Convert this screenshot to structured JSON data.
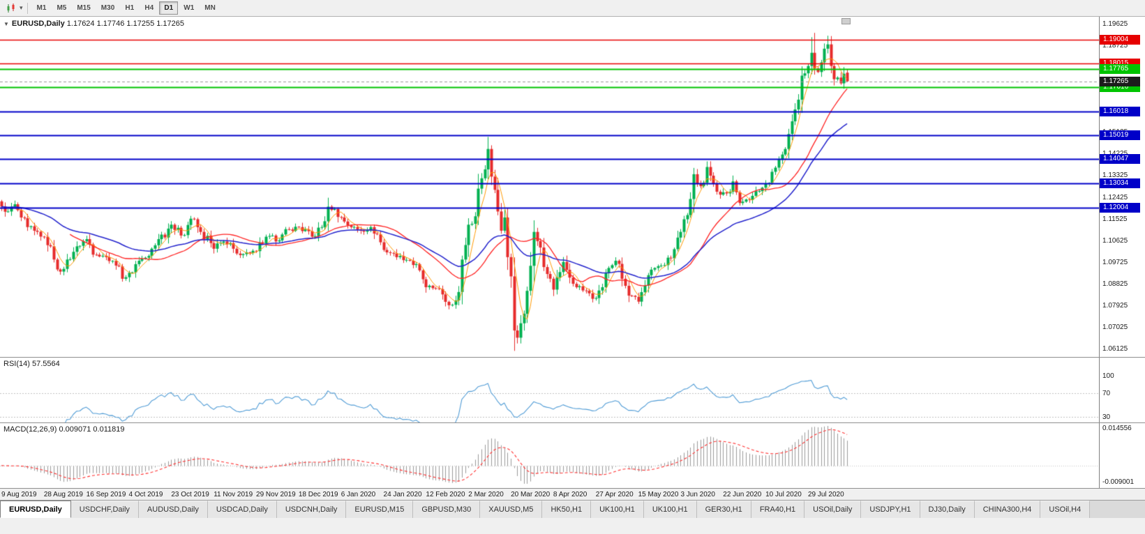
{
  "colors": {
    "up": "#00b050",
    "down": "#e62b2b",
    "ma_fast": "#ff9900",
    "ma_mid": "#ff2222",
    "ma_slow": "#2222cc",
    "rsi": "#4f9bd5",
    "macd_hist": "#9a9a9a",
    "macd_signal": "#ff3030",
    "resistance": "#e60000",
    "support_green": "#00c400",
    "support_blue": "#0000c8",
    "bid_badge": "#1c1c1c"
  },
  "toolbar": {
    "timeframes": [
      {
        "label": "M1",
        "active": false
      },
      {
        "label": "M5",
        "active": false
      },
      {
        "label": "M15",
        "active": false
      },
      {
        "label": "M30",
        "active": false
      },
      {
        "label": "H1",
        "active": false
      },
      {
        "label": "H4",
        "active": false
      },
      {
        "label": "D1",
        "active": true
      },
      {
        "label": "W1",
        "active": false
      },
      {
        "label": "MN",
        "active": false
      }
    ]
  },
  "chart": {
    "title_symbol": "EURUSD,Daily",
    "title_ohlc": "1.17624 1.17746 1.17255 1.17265",
    "scale": {
      "top": 1.1995,
      "bottom": 1.058
    },
    "price_axis_labels": [
      "1.19625",
      "1.18725",
      "1.17825",
      "1.16925",
      "1.16025",
      "1.15125",
      "1.14225",
      "1.13325",
      "1.12425",
      "1.11525",
      "1.10625",
      "1.09725",
      "1.08825",
      "1.07925",
      "1.07025",
      "1.06125"
    ],
    "hlines": [
      {
        "price": 1.19004,
        "label": "1.19004",
        "color": "#e60000",
        "width": 1.4,
        "kind": "resistance"
      },
      {
        "price": 1.18015,
        "label": "1.18015",
        "color": "#e60000",
        "width": 1.4,
        "kind": "resistance"
      },
      {
        "price": 1.17765,
        "label": "1.17765",
        "color": "#00c400",
        "width": 2,
        "kind": "support"
      },
      {
        "price": 1.17016,
        "label": "1.17016",
        "color": "#00c400",
        "width": 2,
        "kind": "support"
      },
      {
        "price": 1.16018,
        "label": "1.16018",
        "color": "#0000c8",
        "width": 1.8,
        "kind": "support"
      },
      {
        "price": 1.15019,
        "label": "1.15019",
        "color": "#0000c8",
        "width": 1.8,
        "kind": "support"
      },
      {
        "price": 1.14047,
        "label": "1.14047",
        "color": "#0000c8",
        "width": 1.8,
        "kind": "support"
      },
      {
        "price": 1.13034,
        "label": "1.13034",
        "color": "#0000c8",
        "width": 1.8,
        "kind": "support"
      },
      {
        "price": 1.12004,
        "label": "1.12004",
        "color": "#0000c8",
        "width": 1.8,
        "kind": "support"
      }
    ],
    "bid": {
      "price": 1.17265,
      "label": "1.17265"
    }
  },
  "chart_data": {
    "type": "candlestick",
    "symbol": "EURUSD",
    "timeframe": "Daily",
    "candles_count": 260,
    "last_candle": {
      "open": 1.17624,
      "high": 1.17746,
      "low": 1.17255,
      "close": 1.17265
    },
    "close_waypoints": [
      [
        0,
        1.1205
      ],
      [
        2,
        1.1185
      ],
      [
        4,
        1.1215
      ],
      [
        6,
        1.116
      ],
      [
        8,
        1.112
      ],
      [
        10,
        1.1105
      ],
      [
        13,
        1.108
      ],
      [
        15,
        1.104
      ],
      [
        18,
        1.0935
      ],
      [
        20,
        1.0985
      ],
      [
        23,
        1.104
      ],
      [
        26,
        1.107
      ],
      [
        29,
        1.1005
      ],
      [
        32,
        1.0995
      ],
      [
        35,
        1.096
      ],
      [
        37,
        1.0905
      ],
      [
        39,
        1.093
      ],
      [
        42,
        1.098
      ],
      [
        45,
        1.1
      ],
      [
        48,
        1.107
      ],
      [
        52,
        1.113
      ],
      [
        55,
        1.1085
      ],
      [
        58,
        1.1155
      ],
      [
        61,
        1.11
      ],
      [
        65,
        1.103
      ],
      [
        68,
        1.106
      ],
      [
        72,
        1.101
      ],
      [
        75,
        1.1015
      ],
      [
        78,
        1.102
      ],
      [
        81,
        1.108
      ],
      [
        85,
        1.1065
      ],
      [
        88,
        1.111
      ],
      [
        91,
        1.112
      ],
      [
        95,
        1.108
      ],
      [
        98,
        1.112
      ],
      [
        100,
        1.1205
      ],
      [
        102,
        1.1195
      ],
      [
        104,
        1.116
      ],
      [
        107,
        1.112
      ],
      [
        110,
        1.1105
      ],
      [
        113,
        1.112
      ],
      [
        115,
        1.109
      ],
      [
        117,
        1.1025
      ],
      [
        120,
        1.101
      ],
      [
        122,
        1.1
      ],
      [
        125,
        1.098
      ],
      [
        128,
        1.094
      ],
      [
        130,
        1.087
      ],
      [
        133,
        1.0865
      ],
      [
        135,
        1.084
      ],
      [
        137,
        1.0795
      ],
      [
        139,
        1.0815
      ],
      [
        140,
        1.085
      ],
      [
        141,
        1.0985
      ],
      [
        143,
        1.113
      ],
      [
        145,
        1.1165
      ],
      [
        146,
        1.128
      ],
      [
        148,
        1.136
      ],
      [
        149,
        1.1445
      ],
      [
        150,
        1.133
      ],
      [
        151,
        1.1275
      ],
      [
        152,
        1.1185
      ],
      [
        153,
        1.1105
      ],
      [
        154,
        1.116
      ],
      [
        155,
        1.0995
      ],
      [
        156,
        1.0915
      ],
      [
        157,
        1.069
      ],
      [
        158,
        1.066
      ],
      [
        159,
        1.072
      ],
      [
        161,
        1.0855
      ],
      [
        163,
        1.11
      ],
      [
        165,
        1.1035
      ],
      [
        167,
        1.0925
      ],
      [
        169,
        1.086
      ],
      [
        172,
        1.0975
      ],
      [
        174,
        1.091
      ],
      [
        176,
        1.087
      ],
      [
        179,
        1.0855
      ],
      [
        182,
        1.0825
      ],
      [
        184,
        1.087
      ],
      [
        186,
        1.095
      ],
      [
        188,
        1.098
      ],
      [
        190,
        1.0905
      ],
      [
        192,
        1.0835
      ],
      [
        195,
        1.081
      ],
      [
        198,
        1.092
      ],
      [
        200,
        1.095
      ],
      [
        202,
        1.096
      ],
      [
        205,
        1.099
      ],
      [
        208,
        1.11
      ],
      [
        210,
        1.117
      ],
      [
        212,
        1.134
      ],
      [
        214,
        1.129
      ],
      [
        216,
        1.137
      ],
      [
        218,
        1.13
      ],
      [
        220,
        1.1255
      ],
      [
        222,
        1.126
      ],
      [
        224,
        1.131
      ],
      [
        226,
        1.122
      ],
      [
        228,
        1.1235
      ],
      [
        230,
        1.125
      ],
      [
        232,
        1.127
      ],
      [
        234,
        1.13
      ],
      [
        236,
        1.135
      ],
      [
        238,
        1.14
      ],
      [
        240,
        1.1445
      ],
      [
        242,
        1.156
      ],
      [
        244,
        1.165
      ],
      [
        245,
        1.175
      ],
      [
        247,
        1.179
      ],
      [
        248,
        1.1845
      ],
      [
        249,
        1.178
      ],
      [
        250,
        1.1765
      ],
      [
        251,
        1.1805
      ],
      [
        252,
        1.1862
      ],
      [
        253,
        1.188
      ],
      [
        254,
        1.179
      ],
      [
        255,
        1.1735
      ],
      [
        256,
        1.1742
      ],
      [
        257,
        1.1718
      ],
      [
        258,
        1.1758
      ],
      [
        259,
        1.17265
      ]
    ],
    "wick_overrides": [
      [
        137,
        "low",
        1.0778
      ],
      [
        149,
        "high",
        1.1495
      ],
      [
        158,
        "low",
        1.0636
      ],
      [
        159,
        "low",
        1.0636
      ],
      [
        248,
        "high",
        1.191
      ],
      [
        249,
        "high",
        1.1928
      ],
      [
        253,
        "high",
        1.1916
      ]
    ],
    "moving_averages": [
      {
        "name": "fast",
        "period": 5,
        "type": "sma",
        "color": "#ff9900",
        "width": 1
      },
      {
        "name": "medium",
        "period": 22,
        "type": "sma",
        "color": "#ff2222",
        "width": 1.3
      },
      {
        "name": "slow",
        "period": 40,
        "type": "ema",
        "color": "#2222cc",
        "width": 1.5
      }
    ],
    "x_labels": [
      "9 Aug 2019",
      "28 Aug 2019",
      "16 Sep 2019",
      "4 Oct 2019",
      "23 Oct 2019",
      "11 Nov 2019",
      "29 Nov 2019",
      "18 Dec 2019",
      "6 Jan 2020",
      "24 Jan 2020",
      "12 Feb 2020",
      "2 Mar 2020",
      "20 Mar 2020",
      "8 Apr 2020",
      "27 Apr 2020",
      "15 May 2020",
      "3 Jun 2020",
      "22 Jun 2020",
      "10 Jul 2020",
      "29 Jul 2020"
    ]
  },
  "rsi": {
    "label": "RSI(14) 57.5564",
    "period": 14,
    "value": 57.5564,
    "levels": [
      100,
      70,
      30
    ],
    "color": "#4f9bd5"
  },
  "macd": {
    "label": "MACD(12,26,9) 0.009071 0.011819",
    "fast": 12,
    "slow": 26,
    "signal": 9,
    "value": 0.009071,
    "signal_value": 0.011819,
    "axis_top": "0.014556",
    "axis_bottom": "-0.009001"
  },
  "tabs": [
    {
      "label": "EURUSD,Daily",
      "active": true
    },
    {
      "label": "USDCHF,Daily",
      "active": false
    },
    {
      "label": "AUDUSD,Daily",
      "active": false
    },
    {
      "label": "USDCAD,Daily",
      "active": false
    },
    {
      "label": "USDCNH,Daily",
      "active": false
    },
    {
      "label": "EURUSD,M15",
      "active": false
    },
    {
      "label": "GBPUSD,M30",
      "active": false
    },
    {
      "label": "XAUUSD,M5",
      "active": false
    },
    {
      "label": "HK50,H1",
      "active": false
    },
    {
      "label": "UK100,H1",
      "active": false
    },
    {
      "label": "UK100,H1",
      "active": false
    },
    {
      "label": "GER30,H1",
      "active": false
    },
    {
      "label": "FRA40,H1",
      "active": false
    },
    {
      "label": "USOil,Daily",
      "active": false
    },
    {
      "label": "USDJPY,H1",
      "active": false
    },
    {
      "label": "DJ30,Daily",
      "active": false
    },
    {
      "label": "CHINA300,H4",
      "active": false
    },
    {
      "label": "USOil,H4",
      "active": false
    }
  ]
}
